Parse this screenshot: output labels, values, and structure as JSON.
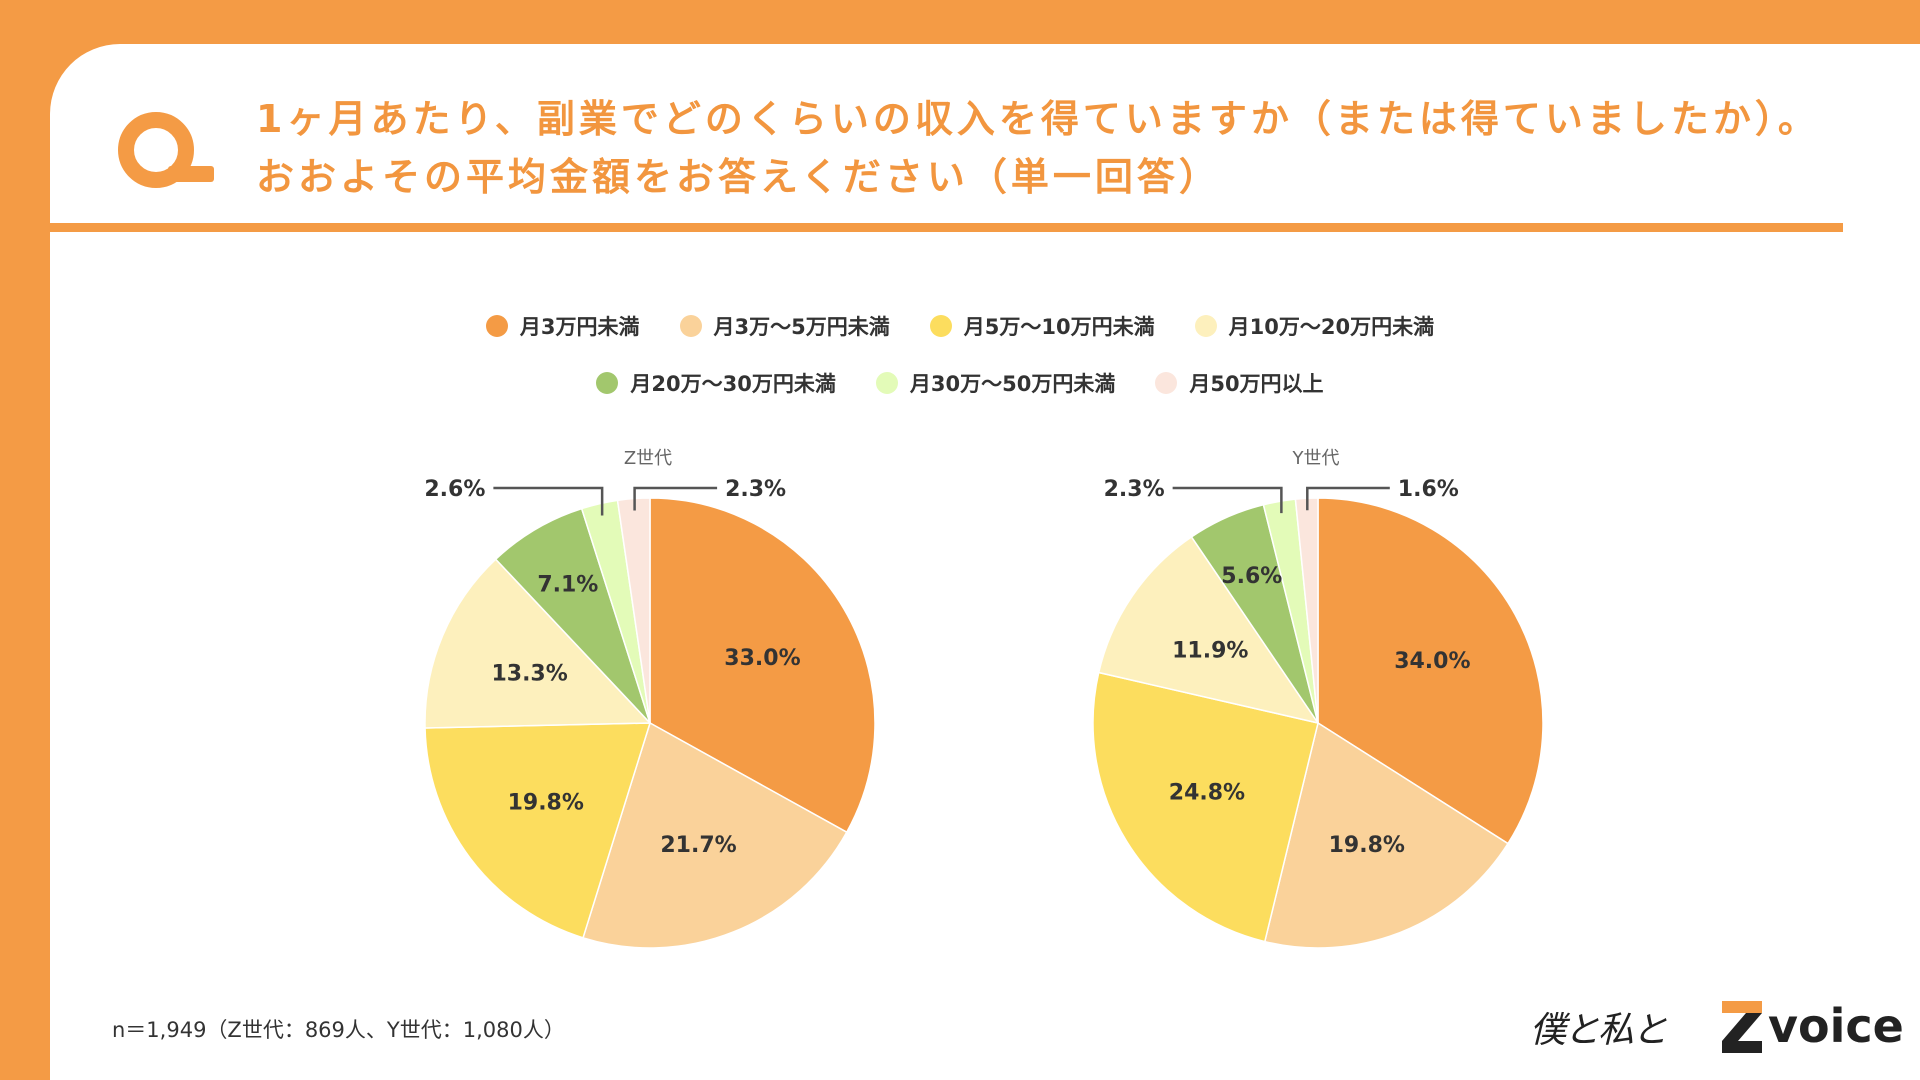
{
  "question": {
    "line1": "1ヶ月あたり、副業でどのくらいの収入を得ていますか（または得ていましたか）。",
    "line2": "おおよその平均金額をお答えください（単一回答）"
  },
  "legend": [
    {
      "label": "月3万円未満",
      "color": "#F49B45"
    },
    {
      "label": "月3万～5万円未満",
      "color": "#FAD29A"
    },
    {
      "label": "月5万～10万円未満",
      "color": "#FCDD5E"
    },
    {
      "label": "月10万～20万円未満",
      "color": "#FDF0BD"
    },
    {
      "label": "月20万～30万円未満",
      "color": "#A2C76D"
    },
    {
      "label": "月30万～50万円未満",
      "color": "#E3FBB8"
    },
    {
      "label": "月50万円以上",
      "color": "#FBE6DD"
    }
  ],
  "chart_data": [
    {
      "type": "pie",
      "title": "Z世代",
      "categories": [
        "月3万円未満",
        "月3万～5万円未満",
        "月5万～10万円未満",
        "月10万～20万円未満",
        "月20万～30万円未満",
        "月30万～50万円未満",
        "月50万円以上"
      ],
      "values": [
        33.0,
        21.7,
        19.8,
        13.3,
        7.1,
        2.6,
        2.3
      ],
      "labels": [
        "33.0%",
        "21.7%",
        "19.8%",
        "13.3%",
        "7.1%",
        "2.6%",
        "2.3%"
      ]
    },
    {
      "type": "pie",
      "title": "Y世代",
      "categories": [
        "月3万円未満",
        "月3万～5万円未満",
        "月5万～10万円未満",
        "月10万～20万円未満",
        "月20万～30万円未満",
        "月30万～50万円未満",
        "月50万円以上"
      ],
      "values": [
        34.0,
        19.8,
        24.8,
        11.9,
        5.6,
        2.3,
        1.6
      ],
      "labels": [
        "34.0%",
        "19.8%",
        "24.8%",
        "11.9%",
        "5.6%",
        "2.3%",
        "1.6%"
      ]
    }
  ],
  "footnote": "n＝1,949（Z世代：869人、Y世代：1,080人）",
  "logo": {
    "script": "僕と私と",
    "brand": "voice",
    "z_color": "#F49B45"
  }
}
